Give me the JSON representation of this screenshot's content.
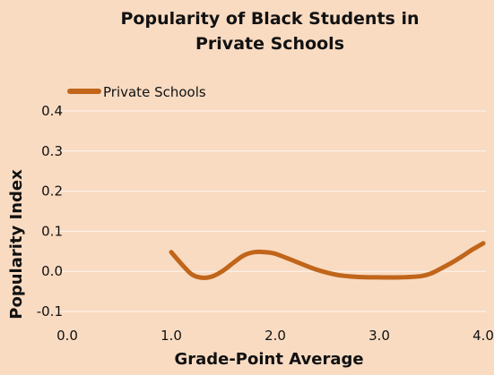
{
  "chart_data": {
    "type": "line",
    "title": "Popularity of Black Students in Private Schools",
    "title_lines": [
      "Popularity of Black Students in",
      "Private Schools"
    ],
    "xlabel": "Grade-Point Average",
    "ylabel": "Popularity Index",
    "xlim": [
      0.0,
      4.0
    ],
    "ylim": [
      -0.1,
      0.4
    ],
    "x_ticks": [
      "0.0",
      "1.0",
      "2.0",
      "3.0",
      "4.0"
    ],
    "x_tick_values": [
      0,
      1,
      2,
      3,
      4
    ],
    "y_ticks": [
      "-0.1",
      "0.0",
      "0.1",
      "0.2",
      "0.3",
      "0.4"
    ],
    "y_tick_values": [
      -0.1,
      0.0,
      0.1,
      0.2,
      0.3,
      0.4
    ],
    "grid": "horizontal",
    "legend_position": "top-left",
    "series": [
      {
        "name": "Private Schools",
        "color": "#c0651a",
        "x": [
          1.0,
          1.1,
          1.2,
          1.3,
          1.4,
          1.5,
          1.6,
          1.7,
          1.8,
          1.9,
          2.0,
          2.2,
          2.4,
          2.6,
          2.8,
          3.0,
          3.2,
          3.4,
          3.5,
          3.6,
          3.7,
          3.8,
          3.9,
          4.0
        ],
        "values": [
          0.048,
          0.018,
          -0.008,
          -0.016,
          -0.012,
          0.002,
          0.022,
          0.04,
          0.048,
          0.048,
          0.044,
          0.024,
          0.004,
          -0.009,
          -0.014,
          -0.015,
          -0.015,
          -0.012,
          -0.005,
          0.008,
          0.022,
          0.038,
          0.055,
          0.07
        ]
      }
    ]
  }
}
